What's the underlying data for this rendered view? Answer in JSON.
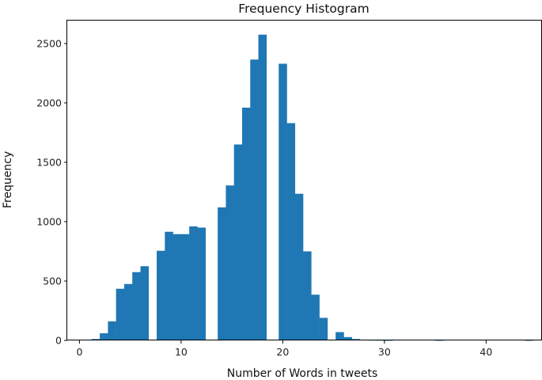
{
  "chart_data": {
    "type": "bar",
    "title": "Frequency Histogram",
    "xlabel": "Number of Words in tweets",
    "ylabel": "Frequency",
    "xlim": [
      -1.2,
      45.5
    ],
    "ylim": [
      0,
      2700
    ],
    "x_ticks": [
      0,
      10,
      20,
      30,
      40
    ],
    "y_ticks": [
      0,
      500,
      1000,
      1500,
      2000,
      2500
    ],
    "grid": false,
    "bar_color": "#1f77b4",
    "bin_width": 0.8,
    "bins": [
      {
        "x": 1.2,
        "value": 12
      },
      {
        "x": 2.0,
        "value": 60
      },
      {
        "x": 2.8,
        "value": 160
      },
      {
        "x": 3.6,
        "value": 435
      },
      {
        "x": 4.4,
        "value": 475
      },
      {
        "x": 5.2,
        "value": 575
      },
      {
        "x": 6.0,
        "value": 625
      },
      {
        "x": 6.8,
        "value": 0
      },
      {
        "x": 7.6,
        "value": 755
      },
      {
        "x": 8.4,
        "value": 915
      },
      {
        "x": 9.2,
        "value": 895
      },
      {
        "x": 10.0,
        "value": 895
      },
      {
        "x": 10.8,
        "value": 960
      },
      {
        "x": 11.6,
        "value": 950
      },
      {
        "x": 12.4,
        "value": 0
      },
      {
        "x": 13.6,
        "value": 1120
      },
      {
        "x": 14.4,
        "value": 1305
      },
      {
        "x": 15.2,
        "value": 1650
      },
      {
        "x": 16.0,
        "value": 1960
      },
      {
        "x": 16.8,
        "value": 2365
      },
      {
        "x": 17.6,
        "value": 2575
      },
      {
        "x": 18.4,
        "value": 0
      },
      {
        "x": 19.6,
        "value": 2330
      },
      {
        "x": 20.4,
        "value": 1830
      },
      {
        "x": 21.2,
        "value": 1235
      },
      {
        "x": 22.0,
        "value": 750
      },
      {
        "x": 22.8,
        "value": 385
      },
      {
        "x": 23.6,
        "value": 190
      },
      {
        "x": 24.4,
        "value": 0
      },
      {
        "x": 25.2,
        "value": 70
      },
      {
        "x": 26.0,
        "value": 28
      },
      {
        "x": 26.8,
        "value": 12
      },
      {
        "x": 27.6,
        "value": 6
      },
      {
        "x": 28.4,
        "value": 3
      },
      {
        "x": 29.2,
        "value": 2
      },
      {
        "x": 30.0,
        "value": 1
      },
      {
        "x": 32.0,
        "value": 5
      },
      {
        "x": 35.0,
        "value": 1
      },
      {
        "x": 43.8,
        "value": 1
      }
    ]
  }
}
